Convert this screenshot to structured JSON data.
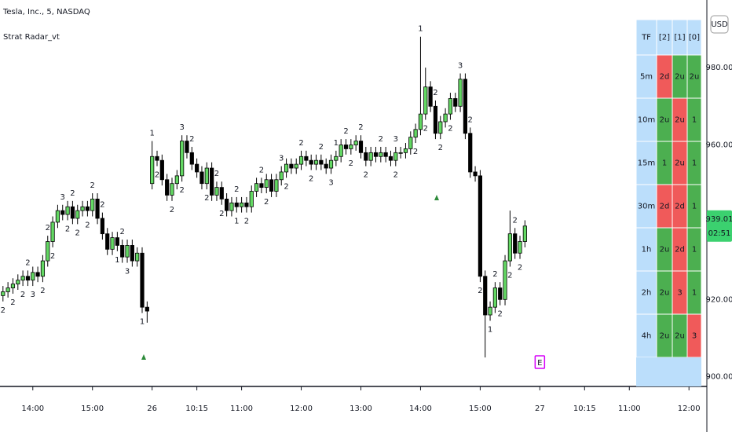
{
  "chart_data": {
    "type": "candlestick",
    "title": "Tesla, Inc., 5, NASDAQ",
    "indicator": "Strat Radar_vt",
    "currency": "USD",
    "countdown": "02:51",
    "up_color": "#63d863",
    "down_color": "#000000",
    "open": [
      921,
      922,
      923,
      924,
      925,
      926,
      925,
      927,
      926,
      930,
      935,
      940,
      943,
      942,
      944,
      941,
      943,
      944,
      943,
      946,
      941,
      937,
      933,
      936,
      934,
      931,
      934,
      930,
      932,
      918,
      950,
      957,
      956,
      951,
      947,
      950,
      952,
      961,
      958,
      955,
      953,
      950,
      954,
      947,
      949,
      946,
      943,
      945,
      944,
      945,
      944,
      948,
      950,
      949,
      951,
      948,
      951,
      953,
      955,
      954,
      955,
      957,
      956,
      955,
      956,
      955,
      954,
      956,
      957,
      960,
      959,
      960,
      961,
      958,
      956,
      958,
      957,
      958,
      957,
      956,
      958,
      958,
      959,
      962,
      964,
      968,
      975,
      970,
      963,
      966,
      968,
      972,
      970,
      977,
      963,
      953,
      952,
      926,
      916,
      918,
      923,
      920,
      930,
      937,
      932,
      935
    ],
    "high": [
      923.5,
      924.5,
      925.5,
      926.5,
      927.5,
      927.5,
      928.5,
      928.5,
      931.5,
      936.5,
      941.5,
      944.5,
      944.5,
      945.5,
      945.5,
      944.5,
      945.5,
      945.5,
      947.5,
      947.5,
      942.5,
      938.5,
      937.5,
      937.5,
      935.5,
      935.5,
      935.5,
      933.5,
      933.5,
      919.5,
      961,
      958.5,
      957.5,
      952.5,
      951.5,
      953.5,
      962.5,
      962.5,
      959.5,
      956.5,
      954.5,
      955.5,
      955.5,
      950.5,
      950.5,
      947.5,
      946.5,
      946.5,
      946.5,
      946.5,
      949.5,
      951.5,
      951.5,
      952.5,
      952.5,
      952.5,
      954.5,
      956.5,
      956.5,
      956.5,
      958.5,
      958.5,
      957.5,
      957.5,
      957.5,
      956.5,
      957.5,
      958.5,
      961.5,
      961.5,
      961.5,
      962.5,
      962.5,
      959.5,
      959.5,
      959.5,
      959.5,
      959.5,
      958.5,
      959.5,
      959.5,
      960.5,
      963.5,
      965.5,
      988,
      980,
      976.5,
      971.5,
      967.5,
      969.5,
      973.5,
      973.5,
      978.5,
      978.5,
      964.5,
      954.5,
      953.5,
      927.5,
      919.5,
      924.5,
      924.5,
      931.5,
      943,
      938.5,
      936.5,
      940.5
    ],
    "low": [
      919.5,
      920.5,
      921.5,
      922.5,
      923.5,
      923.5,
      923.5,
      924.5,
      924.5,
      928.5,
      933.5,
      938.5,
      940.5,
      940.5,
      939.5,
      939.5,
      941.5,
      941.5,
      941.5,
      939.5,
      935.5,
      931.5,
      931.5,
      932.5,
      929.5,
      929.5,
      928.5,
      928.5,
      916.5,
      914,
      948.5,
      954.5,
      949.5,
      945.5,
      945.5,
      948.5,
      950.5,
      956.5,
      953.5,
      951.5,
      948.5,
      948.5,
      945.5,
      945.5,
      944.5,
      941.5,
      941.5,
      942.5,
      942.5,
      942.5,
      942.5,
      946.5,
      947.5,
      947.5,
      946.5,
      946.5,
      949.5,
      951.5,
      952.5,
      952.5,
      953.5,
      954.5,
      953.5,
      953.5,
      953.5,
      952.5,
      952.5,
      954.5,
      955.5,
      957.5,
      957.5,
      958.5,
      956.5,
      954.5,
      954.5,
      955.5,
      955.5,
      955.5,
      954.5,
      954.5,
      956.5,
      956.5,
      957.5,
      960.5,
      962.5,
      966.5,
      968.5,
      961.5,
      961.5,
      964.5,
      966.5,
      968.5,
      968.5,
      961.5,
      951.5,
      950.5,
      924.5,
      905,
      914.5,
      916.5,
      918.5,
      918.5,
      928.5,
      930.5,
      930.5,
      933.5
    ],
    "close": [
      922,
      923,
      924,
      925,
      926,
      925,
      927,
      926,
      930,
      935,
      940,
      943,
      942,
      944,
      941,
      943,
      944,
      943,
      946,
      941,
      937,
      933,
      936,
      934,
      931,
      934,
      930,
      932,
      918,
      917,
      957,
      956,
      951,
      947,
      950,
      952,
      961,
      958,
      955,
      953,
      950,
      954,
      947,
      949,
      946,
      943,
      945,
      944,
      945,
      944,
      948,
      950,
      949,
      951,
      948,
      951,
      953,
      955,
      954,
      955,
      957,
      956,
      955,
      956,
      955,
      954,
      956,
      957,
      960,
      959,
      960,
      961,
      958,
      956,
      958,
      957,
      958,
      957,
      956,
      958,
      958,
      959,
      962,
      964,
      968,
      975,
      970,
      963,
      966,
      968,
      972,
      970,
      977,
      963,
      953,
      952,
      926,
      916,
      918,
      923,
      920,
      930,
      937,
      932,
      935,
      939.01
    ],
    "xlim": [
      -0.6,
      141.6
    ],
    "ylim": [
      897.5,
      997.5
    ],
    "xticks": [
      {
        "value": 6,
        "label": "14:00"
      },
      {
        "value": 18,
        "label": "15:00"
      },
      {
        "value": 30,
        "label": "26"
      },
      {
        "value": 39,
        "label": "10:15"
      },
      {
        "value": 48,
        "label": "11:00"
      },
      {
        "value": 60,
        "label": "12:00"
      },
      {
        "value": 72,
        "label": "13:00"
      },
      {
        "value": 84,
        "label": "14:00"
      },
      {
        "value": 96,
        "label": "15:00"
      },
      {
        "value": 108,
        "label": "27"
      },
      {
        "value": 117,
        "label": "10:15"
      },
      {
        "value": 126,
        "label": "11:00"
      },
      {
        "value": 138,
        "label": "12:00"
      }
    ],
    "yticks": [
      {
        "value": 980,
        "label": "980.00"
      },
      {
        "value": 960,
        "label": "960.00"
      },
      {
        "value": 940,
        "label": "940.00"
      },
      {
        "value": 920,
        "label": "920.00"
      },
      {
        "value": 900,
        "label": "900.00"
      }
    ],
    "label_colors": {
      "above": "#e53935",
      "below": "#2e8b3a"
    },
    "strat_labels": {
      "index": [
        0,
        2,
        4,
        6,
        8,
        10,
        13,
        15,
        17,
        23,
        25,
        28,
        31,
        34,
        36,
        41,
        44,
        47,
        49,
        53,
        57,
        62,
        66,
        70,
        73,
        79,
        83,
        85,
        88,
        90,
        96,
        98,
        100,
        102,
        104,
        5,
        9,
        12,
        14,
        18,
        20,
        24,
        30,
        36,
        38,
        43,
        47,
        52,
        56,
        60,
        64,
        67,
        69,
        72,
        76,
        79,
        84,
        87,
        92,
        94,
        99,
        103
      ],
      "text": [
        "2",
        "2",
        "2",
        "3",
        "2",
        "2",
        "2",
        "2",
        "2",
        "1",
        "3",
        "1",
        "2",
        "2",
        "2",
        "2",
        "2",
        "1",
        "2",
        "2",
        "2",
        "2",
        "3",
        "2",
        "2",
        "2",
        "2",
        "2",
        "2",
        "2",
        "2",
        "1",
        "2",
        "2",
        "2",
        "2",
        "2",
        "3",
        "2",
        "2",
        "2",
        "2",
        "1",
        "3",
        "2",
        "2",
        "2",
        "2",
        "3",
        "2",
        "2",
        "1",
        "2",
        "2",
        "2",
        "3",
        "1",
        "2",
        "3",
        "2",
        "2",
        "2"
      ],
      "position": [
        "below",
        "below",
        "below",
        "below",
        "below",
        "below",
        "below",
        "below",
        "below",
        "below",
        "below",
        "below",
        "below",
        "below",
        "below",
        "below",
        "below",
        "below",
        "below",
        "below",
        "below",
        "below",
        "below",
        "below",
        "below",
        "below",
        "below",
        "below",
        "below",
        "below",
        "below",
        "below",
        "below",
        "below",
        "below",
        "above",
        "above",
        "above",
        "above",
        "above",
        "above",
        "above",
        "above",
        "above",
        "above",
        "above",
        "above",
        "above",
        "above",
        "above",
        "above",
        "above",
        "above",
        "above",
        "above",
        "above",
        "above",
        "above",
        "above",
        "above",
        "above",
        "above"
      ]
    },
    "event_marker": {
      "index": 108,
      "text": "E"
    }
  },
  "radar_table": {
    "header": [
      "TF",
      "[2]",
      "[1]",
      "[0]"
    ],
    "rows": [
      [
        "5m",
        "2d",
        "2u",
        "2u"
      ],
      [
        "10m",
        "2u",
        "2u",
        "1"
      ],
      [
        "15m",
        "1",
        "2u",
        "1"
      ],
      [
        "30m",
        "2d",
        "2d",
        "1"
      ],
      [
        "1h",
        "2u",
        "2d",
        "1"
      ],
      [
        "2h",
        "2u",
        "3",
        "1"
      ],
      [
        "4h",
        "2u",
        "2u",
        "3"
      ]
    ],
    "cell_colors": [
      [
        "#f05a5a",
        "#4caf50",
        "#4caf50"
      ],
      [
        "#4caf50",
        "#f05a5a",
        "#4caf50"
      ],
      [
        "#4caf50",
        "#f05a5a",
        "#4caf50"
      ],
      [
        "#f05a5a",
        "#f05a5a",
        "#4caf50"
      ],
      [
        "#4caf50",
        "#f05a5a",
        "#4caf50"
      ],
      [
        "#4caf50",
        "#f05a5a",
        "#4caf50"
      ],
      [
        "#4caf50",
        "#4caf50",
        "#f05a5a"
      ]
    ],
    "header_color": "#bbdefb"
  }
}
